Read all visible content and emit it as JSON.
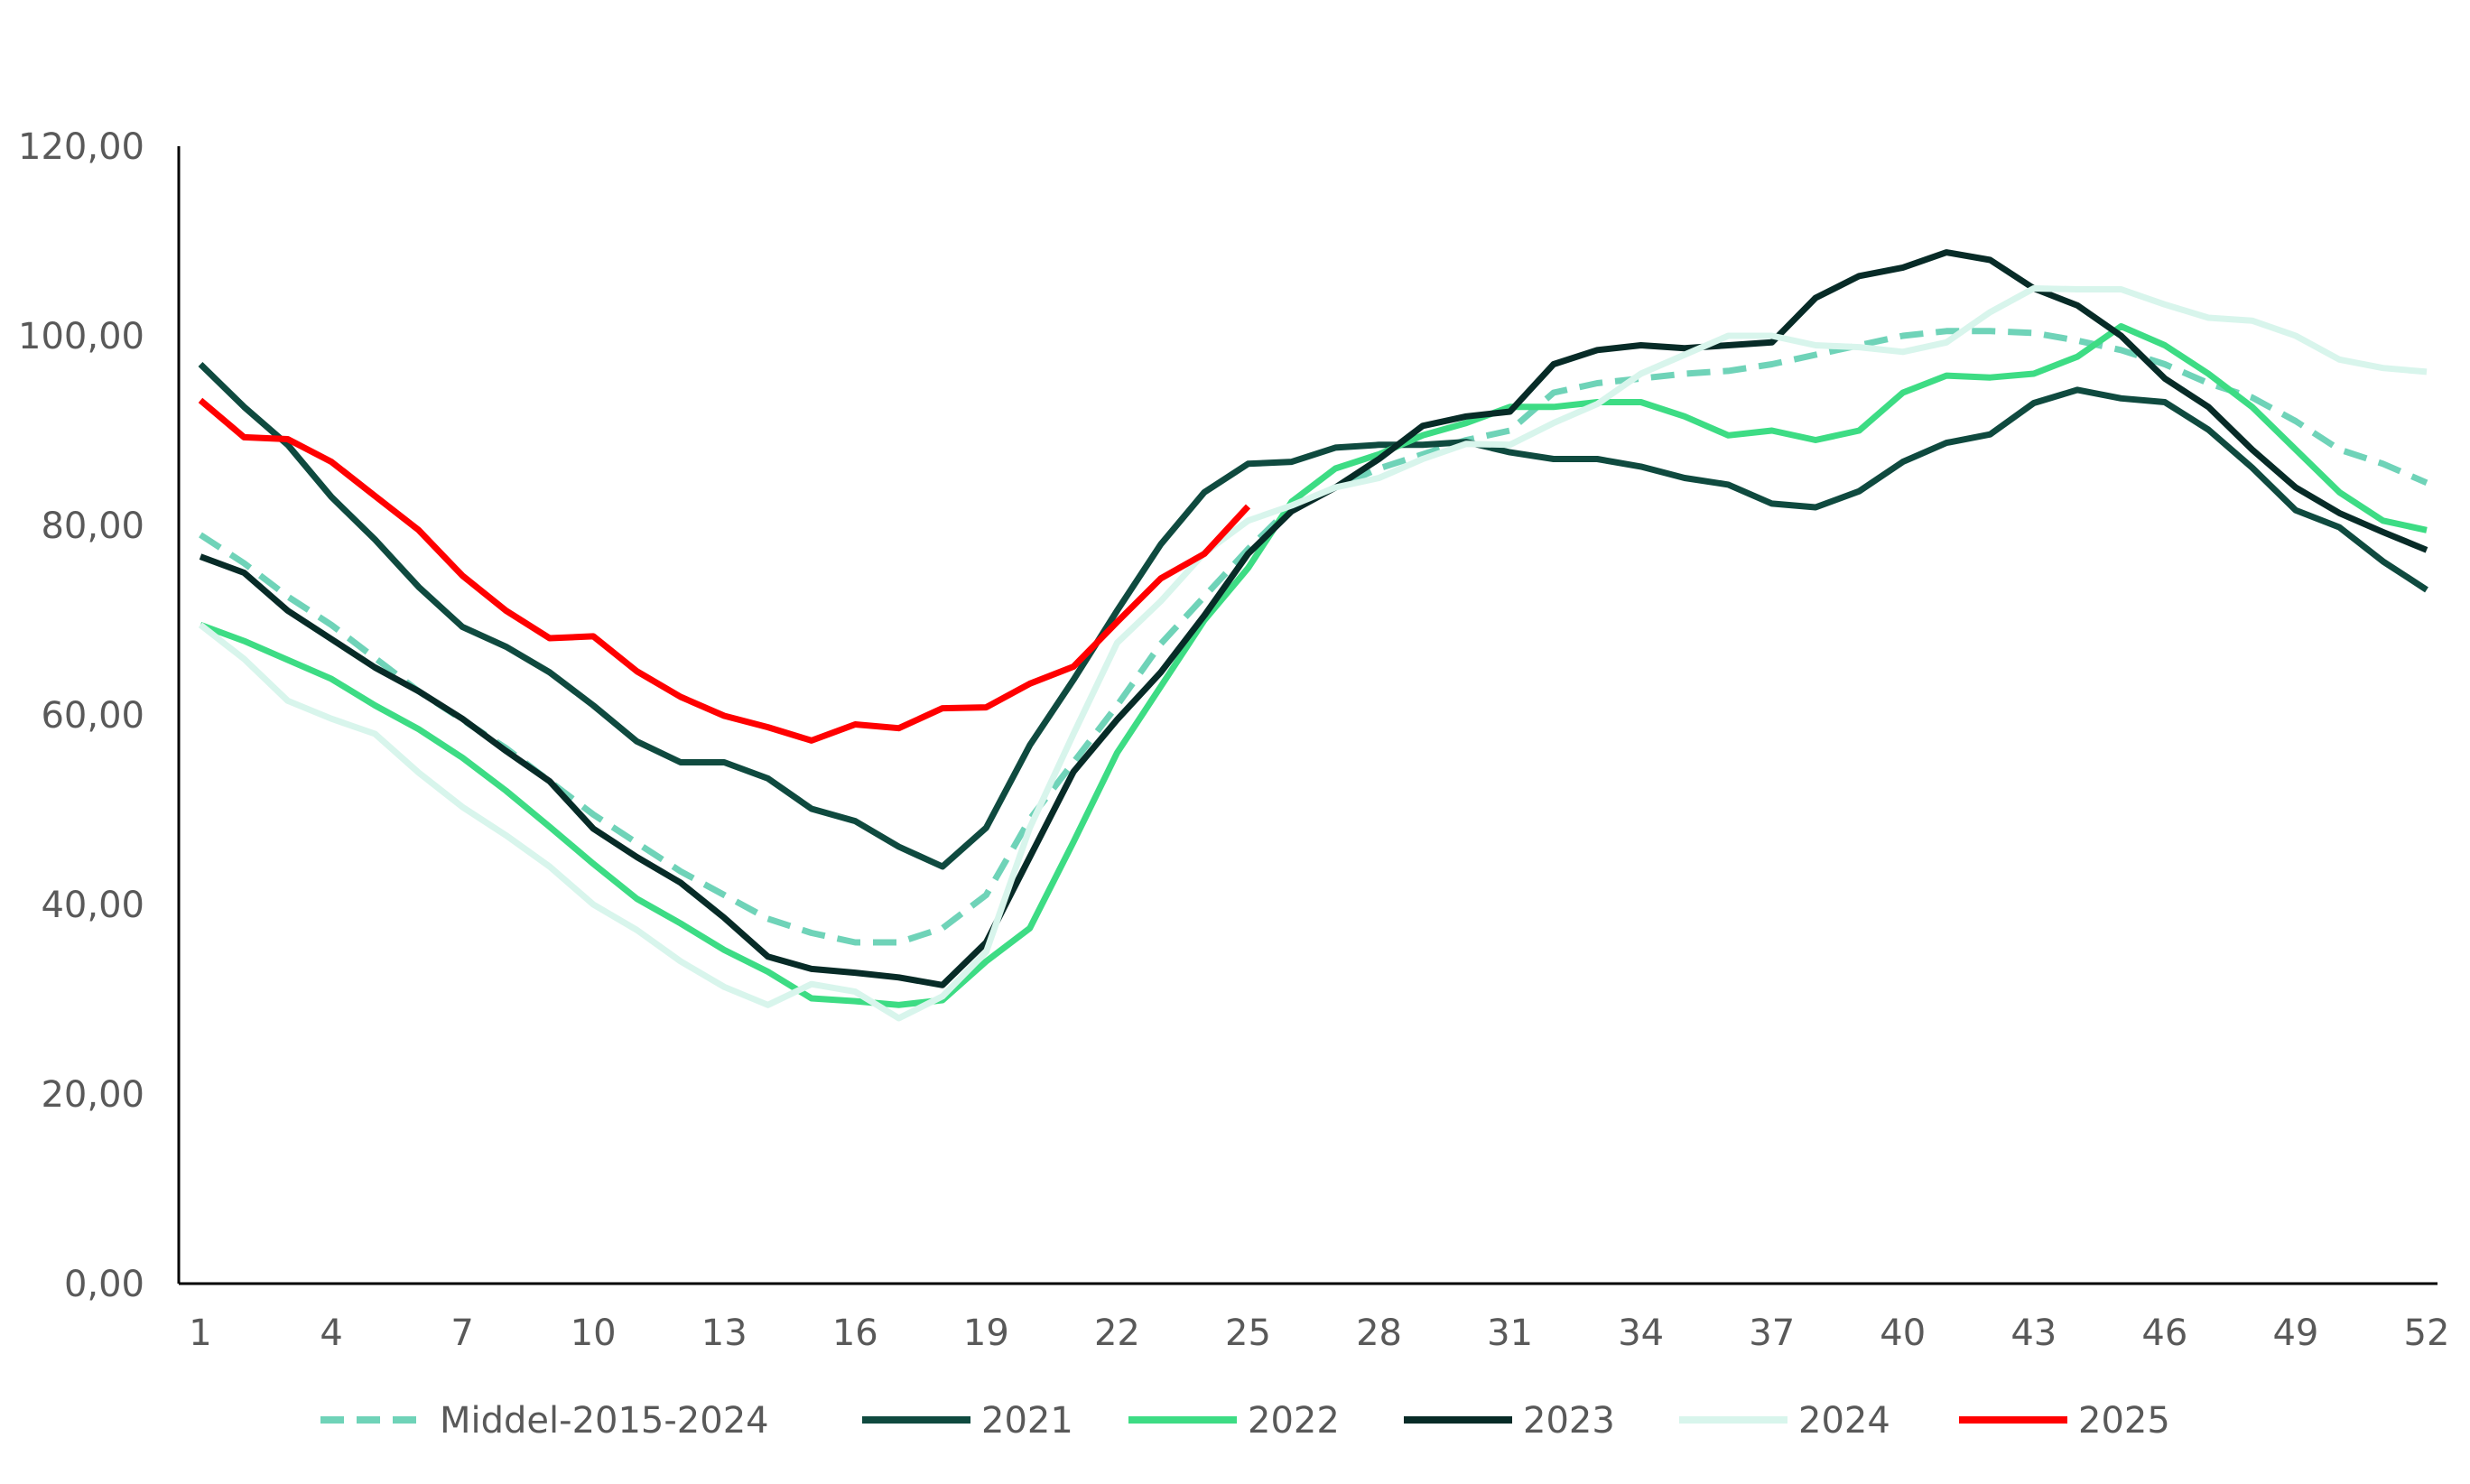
{
  "chart_data": {
    "type": "line",
    "title": "",
    "xlabel": "",
    "ylabel": "",
    "ylim": [
      0,
      120
    ],
    "xlim": [
      1,
      52
    ],
    "y_ticks": [
      "0,00",
      "20,00",
      "40,00",
      "60,00",
      "80,00",
      "100,00",
      "120,00"
    ],
    "x_ticks": [
      1,
      4,
      7,
      10,
      13,
      16,
      19,
      22,
      25,
      28,
      31,
      34,
      37,
      40,
      43,
      46,
      49,
      52
    ],
    "grid": false,
    "legend_position": "bottom",
    "x": [
      1,
      2,
      3,
      4,
      5,
      6,
      7,
      8,
      9,
      10,
      11,
      12,
      13,
      14,
      15,
      16,
      17,
      18,
      19,
      20,
      21,
      22,
      23,
      24,
      25,
      26,
      27,
      28,
      29,
      30,
      31,
      32,
      33,
      34,
      35,
      36,
      37,
      38,
      39,
      40,
      41,
      42,
      43,
      44,
      45,
      46,
      47,
      48,
      49,
      50,
      51,
      52
    ],
    "series": [
      {
        "name": "Middel-2015-2024",
        "color": "#6fd3b8",
        "dashed": true,
        "values": [
          79,
          76,
          72.5,
          69.5,
          66,
          62.5,
          59.5,
          56.5,
          53,
          49.5,
          46.5,
          43.5,
          41,
          38.5,
          37,
          36,
          36,
          37.5,
          41,
          49,
          55,
          61,
          67.5,
          72.5,
          77.5,
          82,
          84,
          86,
          87.5,
          89,
          90,
          94,
          95,
          95.5,
          96,
          96.3,
          97,
          98,
          99,
          100,
          100.5,
          100.5,
          100.3,
          99.5,
          98.5,
          97,
          95,
          93.5,
          91,
          88,
          86.5,
          84.5
        ]
      },
      {
        "name": "2021",
        "color": "#0f4a3f",
        "dashed": false,
        "values": [
          97,
          92.5,
          88.5,
          83,
          78.5,
          73.5,
          69.3,
          67.2,
          64.5,
          61,
          57.2,
          55,
          55,
          53.3,
          50.1,
          48.8,
          46.1,
          44,
          48.1,
          56.8,
          63.7,
          71,
          78,
          83.5,
          86.5,
          86.7,
          88.2,
          88.5,
          88.5,
          88.8,
          87.7,
          87,
          87,
          86.2,
          85,
          84.3,
          82.3,
          81.9,
          83.6,
          86.7,
          88.7,
          89.6,
          92.9,
          94.3,
          93.4,
          93,
          90.1,
          86.1,
          81.6,
          79.8,
          76.2,
          73.2
        ]
      },
      {
        "name": "2022",
        "color": "#3ddc84",
        "dashed": false,
        "values": [
          69.5,
          67.8,
          65.8,
          63.8,
          61,
          58.5,
          55.5,
          52,
          48.2,
          44.3,
          40.6,
          38,
          35.2,
          32.9,
          30.1,
          29.8,
          29.4,
          29.9,
          34,
          37.5,
          46.6,
          56,
          63,
          70,
          75.5,
          82.5,
          86,
          87.5,
          89.5,
          90.8,
          92.5,
          92.5,
          93,
          93,
          91.5,
          89.5,
          90,
          89,
          90,
          94,
          95.8,
          95.6,
          96,
          97.8,
          101,
          99,
          96,
          92.5,
          88,
          83.5,
          80.5,
          79.5
        ]
      },
      {
        "name": "2023",
        "color": "#072b27",
        "dashed": false,
        "values": [
          76.7,
          75,
          71,
          68,
          65,
          62.5,
          59.6,
          56.2,
          53,
          48,
          45,
          42.3,
          38.6,
          34.5,
          33.2,
          32.8,
          32.3,
          31.5,
          36,
          45,
          54,
          59.5,
          64.5,
          70.5,
          77,
          81.5,
          84,
          87,
          90.5,
          91.5,
          92,
          97,
          98.5,
          99,
          98.7,
          99,
          99.3,
          104,
          106.3,
          107.2,
          108.8,
          108,
          105,
          103.2,
          100,
          95.5,
          92.5,
          88,
          84,
          81.3,
          79.3,
          77.4
        ]
      },
      {
        "name": "2024",
        "color": "#d8f5ec",
        "dashed": false,
        "values": [
          69.5,
          65.9,
          61.5,
          59.6,
          58,
          53.9,
          50.3,
          47.3,
          44,
          40,
          37.3,
          34,
          31.3,
          29.4,
          31.6,
          30.8,
          28,
          30.3,
          35,
          48.1,
          58,
          67.6,
          72,
          77.1,
          80.5,
          82.1,
          84,
          85,
          87,
          88.6,
          88.5,
          90.8,
          92.8,
          96,
          98,
          100,
          100,
          99,
          98.8,
          98.3,
          99.3,
          102.5,
          105,
          104.9,
          104.9,
          103.3,
          101.9,
          101.6,
          100,
          97.5,
          96.6,
          96.2
        ]
      },
      {
        "name": "2025",
        "color": "#ff0000",
        "dashed": false,
        "values": [
          93.2,
          89.3,
          89.1,
          86.7,
          83.1,
          79.5,
          74.7,
          71,
          68.1,
          68.3,
          64.6,
          61.9,
          59.9,
          58.7,
          57.3,
          59,
          58.6,
          60.7,
          60.8,
          63.3,
          65.1,
          69.8,
          74.4,
          77,
          82,
          null,
          null,
          null,
          null,
          null,
          null,
          null,
          null,
          null,
          null,
          null,
          null,
          null,
          null,
          null,
          null,
          null,
          null,
          null,
          null,
          null,
          null,
          null,
          null,
          null,
          null,
          null
        ]
      }
    ]
  }
}
